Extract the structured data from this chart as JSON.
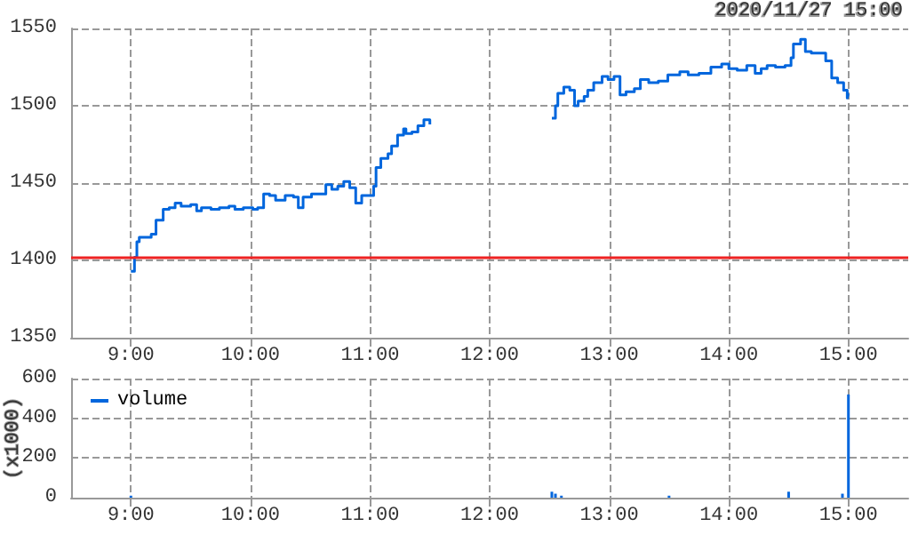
{
  "chart_data": [
    {
      "type": "step",
      "annotations": [
        "2020/11/27 15:00"
      ],
      "xlim": [
        8.5,
        15.5
      ],
      "xticks": [
        {
          "value": 9,
          "label": "9:00"
        },
        {
          "value": 10,
          "label": "10:00"
        },
        {
          "value": 11,
          "label": "11:00"
        },
        {
          "value": 12,
          "label": "12:00"
        },
        {
          "value": 13,
          "label": "13:00"
        },
        {
          "value": 14,
          "label": "14:00"
        },
        {
          "value": 15,
          "label": "15:00"
        }
      ],
      "ylim": [
        1350,
        1550
      ],
      "yticks": [
        1350,
        1400,
        1450,
        1500,
        1550
      ],
      "grid": true,
      "legend": false,
      "marker": "none",
      "ref_lines": [
        {
          "axis": "y",
          "value": 1402,
          "label": null,
          "color": "#ee2222"
        }
      ],
      "series": [
        {
          "color": "#0066dd",
          "x": [
            9.0,
            9.03,
            9.05,
            9.07,
            9.17,
            9.21,
            9.27,
            9.32,
            9.37,
            9.42,
            9.5,
            9.55,
            9.59,
            9.67,
            9.74,
            9.82,
            9.87,
            9.94,
            10.02,
            10.06,
            10.11,
            10.16,
            10.21,
            10.29,
            10.36,
            10.4,
            10.44,
            10.51,
            10.58,
            10.63,
            10.68,
            10.73,
            10.78,
            10.83,
            10.88,
            10.93,
            11.0,
            11.03,
            11.05,
            11.09,
            11.15,
            11.18,
            11.23,
            11.28,
            11.3,
            11.35,
            11.4,
            11.45,
            11.5
          ],
          "values": [
            1393,
            1402,
            1412,
            1415,
            1417,
            1426,
            1433,
            1434,
            1437,
            1435,
            1436,
            1432,
            1434,
            1433,
            1434,
            1435,
            1433,
            1434,
            1433,
            1434,
            1443,
            1442,
            1439,
            1442,
            1441,
            1434,
            1441,
            1443,
            1443,
            1449,
            1446,
            1448,
            1451,
            1447,
            1437,
            1442,
            1442,
            1448,
            1460,
            1466,
            1469,
            1474,
            1481,
            1485,
            1482,
            1483,
            1487,
            1491,
            1488
          ]
        },
        {
          "color": "#0066dd",
          "x": [
            12.52,
            12.55,
            12.57,
            12.62,
            12.67,
            12.71,
            12.74,
            12.79,
            12.82,
            12.87,
            12.94,
            12.99,
            13.04,
            13.09,
            13.14,
            13.21,
            13.26,
            13.33,
            13.41,
            13.49,
            13.59,
            13.66,
            13.75,
            13.85,
            13.94,
            14.0,
            14.07,
            14.15,
            14.22,
            14.27,
            14.32,
            14.39,
            14.47,
            14.52,
            14.54,
            14.6,
            14.64,
            14.69,
            14.76,
            14.81,
            14.86,
            14.91,
            14.96,
            14.99,
            15.0
          ],
          "values": [
            1492,
            1500,
            1508,
            1512,
            1510,
            1500,
            1503,
            1506,
            1510,
            1515,
            1519,
            1517,
            1519,
            1507,
            1509,
            1511,
            1517,
            1515,
            1516,
            1520,
            1522,
            1520,
            1521,
            1525,
            1527,
            1524,
            1523,
            1526,
            1521,
            1524,
            1526,
            1525,
            1526,
            1531,
            1540,
            1543,
            1535,
            1534,
            1534,
            1529,
            1518,
            1515,
            1510,
            1505,
            1508
          ]
        }
      ]
    },
    {
      "type": "bar",
      "ylabel": "(x1000)",
      "xlim": [
        8.5,
        15.5
      ],
      "xticks": [
        {
          "value": 9,
          "label": "9:00"
        },
        {
          "value": 10,
          "label": "10:00"
        },
        {
          "value": 11,
          "label": "11:00"
        },
        {
          "value": 12,
          "label": "12:00"
        },
        {
          "value": 13,
          "label": "13:00"
        },
        {
          "value": 14,
          "label": "14:00"
        },
        {
          "value": 15,
          "label": "15:00"
        }
      ],
      "ylim": [
        0,
        600
      ],
      "yticks": [
        0,
        200,
        400,
        600
      ],
      "grid": true,
      "legend": "top left",
      "series": [
        {
          "name": "volume",
          "color": "#0066dd",
          "x": [
            9.0,
            12.52,
            12.55,
            12.6,
            13.5,
            14.5,
            14.95,
            15.0
          ],
          "values": [
            10,
            30,
            20,
            10,
            10,
            30,
            20,
            520
          ]
        }
      ]
    }
  ]
}
